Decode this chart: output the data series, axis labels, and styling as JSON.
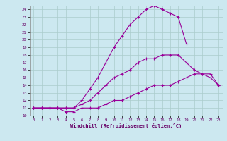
{
  "xlabel": "Windchill (Refroidissement éolien,°C)",
  "bg_color": "#cce8f0",
  "line_color": "#990099",
  "grid_color": "#aacccc",
  "xlim": [
    -0.5,
    23.5
  ],
  "ylim": [
    10,
    24.5
  ],
  "xticks": [
    0,
    1,
    2,
    3,
    4,
    5,
    6,
    7,
    8,
    9,
    10,
    11,
    12,
    13,
    14,
    15,
    16,
    17,
    18,
    19,
    20,
    21,
    22,
    23
  ],
  "yticks": [
    10,
    11,
    12,
    13,
    14,
    15,
    16,
    17,
    18,
    19,
    20,
    21,
    22,
    23,
    24
  ],
  "curve1_x": [
    0,
    1,
    2,
    3,
    4,
    5,
    6,
    7,
    8,
    9,
    10,
    11,
    12,
    13,
    14,
    15,
    16,
    17,
    18,
    19,
    20,
    21,
    22,
    23
  ],
  "curve1_y": [
    11,
    11,
    11,
    11,
    10.5,
    10.5,
    11,
    11,
    11,
    11.5,
    12,
    12,
    12.5,
    13,
    13.5,
    14,
    14,
    14,
    14.5,
    15,
    15.5,
    15.5,
    15.5,
    14
  ],
  "curve2_x": [
    0,
    1,
    2,
    3,
    4,
    5,
    6,
    7,
    8,
    9,
    10,
    11,
    12,
    13,
    14,
    15,
    16,
    17,
    18,
    19,
    20,
    21,
    22,
    23
  ],
  "curve2_y": [
    11,
    11,
    11,
    11,
    11,
    11,
    11.5,
    12,
    13,
    14,
    15,
    15.5,
    16,
    17,
    17.5,
    17.5,
    18,
    18,
    18,
    17,
    16,
    15.5,
    15,
    14
  ],
  "curve3_x": [
    0,
    1,
    2,
    3,
    4,
    5,
    6,
    7,
    8,
    9,
    10,
    11,
    12,
    13,
    14,
    15,
    16,
    17,
    18,
    19
  ],
  "curve3_y": [
    11,
    11,
    11,
    11,
    11,
    11,
    12,
    13.5,
    15,
    17,
    19,
    20.5,
    22,
    23,
    24,
    24.5,
    24,
    23.5,
    23,
    19.5
  ]
}
